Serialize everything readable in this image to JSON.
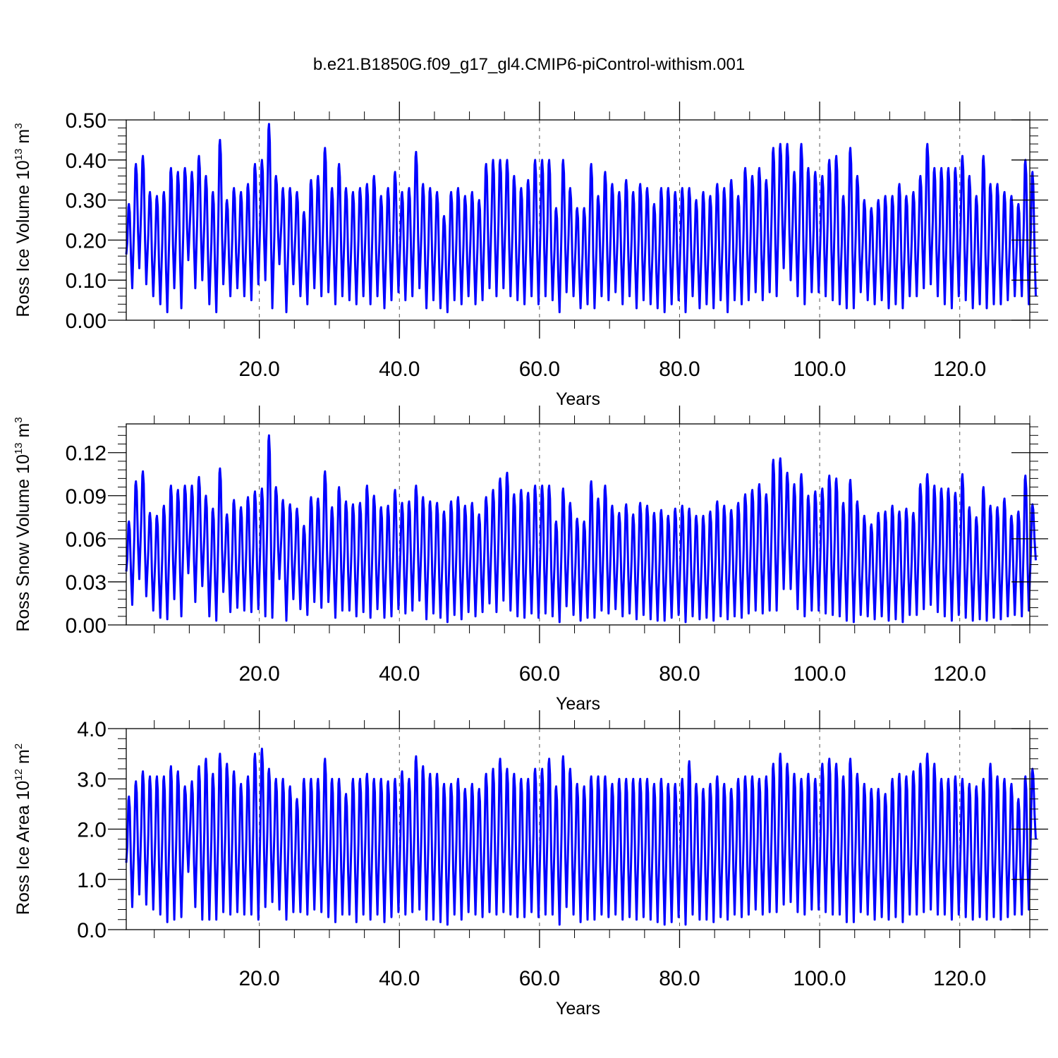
{
  "title": "b.e21.B1850G.f09_g17_gl4.CMIP6-piControl-withism.001",
  "line_color": "#0000ff",
  "chart_data": [
    {
      "type": "line",
      "ylabel": "Ross Ice Volume 10",
      "ylabel_exp": "13",
      "ylabel_unit": " m",
      "ylabel_unit_exp": "3",
      "xlabel": "Years",
      "xlim": [
        1,
        130
      ],
      "ylim": [
        0,
        0.5
      ],
      "yticks": [
        0,
        0.1,
        0.2,
        0.3,
        0.4,
        0.5
      ],
      "yticklabels": [
        "0.00",
        "0.10",
        "0.20",
        "0.30",
        "0.40",
        "0.50"
      ],
      "xticks": [
        20,
        40,
        60,
        80,
        100,
        120
      ],
      "xticklabels": [
        "20.0",
        "40.0",
        "60.0",
        "80.0",
        "100.0",
        "120.0"
      ],
      "grid": "vertical-dashed",
      "annual_max": [
        0.29,
        0.39,
        0.41,
        0.32,
        0.31,
        0.32,
        0.38,
        0.37,
        0.38,
        0.37,
        0.41,
        0.36,
        0.32,
        0.45,
        0.3,
        0.33,
        0.32,
        0.34,
        0.39,
        0.4,
        0.49,
        0.36,
        0.33,
        0.33,
        0.32,
        0.27,
        0.35,
        0.36,
        0.43,
        0.33,
        0.39,
        0.33,
        0.32,
        0.33,
        0.34,
        0.36,
        0.31,
        0.33,
        0.37,
        0.32,
        0.33,
        0.42,
        0.34,
        0.33,
        0.32,
        0.26,
        0.32,
        0.33,
        0.31,
        0.32,
        0.3,
        0.39,
        0.4,
        0.4,
        0.4,
        0.36,
        0.33,
        0.35,
        0.4,
        0.4,
        0.4,
        0.28,
        0.4,
        0.33,
        0.28,
        0.28,
        0.39,
        0.31,
        0.37,
        0.34,
        0.32,
        0.35,
        0.32,
        0.34,
        0.33,
        0.29,
        0.33,
        0.33,
        0.32,
        0.33,
        0.33,
        0.3,
        0.32,
        0.31,
        0.34,
        0.33,
        0.35,
        0.31,
        0.38,
        0.36,
        0.38,
        0.35,
        0.43,
        0.44,
        0.44,
        0.37,
        0.44,
        0.38,
        0.37,
        0.36,
        0.4,
        0.41,
        0.31,
        0.43,
        0.36,
        0.3,
        0.28,
        0.3,
        0.31,
        0.31,
        0.34,
        0.31,
        0.32,
        0.36,
        0.44,
        0.38,
        0.38,
        0.38,
        0.38,
        0.41,
        0.36,
        0.31,
        0.41,
        0.34,
        0.34,
        0.32,
        0.31,
        0.29,
        0.4,
        0.37
      ],
      "annual_min": [
        0.08,
        0.13,
        0.09,
        0.06,
        0.04,
        0.02,
        0.08,
        0.03,
        0.15,
        0.08,
        0.1,
        0.04,
        0.02,
        0.09,
        0.06,
        0.08,
        0.06,
        0.05,
        0.09,
        0.1,
        0.03,
        0.14,
        0.02,
        0.09,
        0.06,
        0.04,
        0.08,
        0.06,
        0.07,
        0.04,
        0.06,
        0.05,
        0.04,
        0.06,
        0.04,
        0.06,
        0.03,
        0.05,
        0.07,
        0.05,
        0.06,
        0.08,
        0.03,
        0.05,
        0.03,
        0.02,
        0.05,
        0.04,
        0.06,
        0.04,
        0.05,
        0.08,
        0.06,
        0.08,
        0.06,
        0.05,
        0.04,
        0.06,
        0.04,
        0.06,
        0.05,
        0.02,
        0.07,
        0.06,
        0.03,
        0.04,
        0.03,
        0.06,
        0.05,
        0.07,
        0.04,
        0.06,
        0.03,
        0.05,
        0.04,
        0.03,
        0.02,
        0.04,
        0.05,
        0.02,
        0.06,
        0.03,
        0.04,
        0.03,
        0.05,
        0.02,
        0.05,
        0.04,
        0.05,
        0.07,
        0.05,
        0.07,
        0.06,
        0.13,
        0.1,
        0.06,
        0.04,
        0.07,
        0.07,
        0.06,
        0.05,
        0.04,
        0.03,
        0.03,
        0.07,
        0.05,
        0.04,
        0.05,
        0.03,
        0.04,
        0.03,
        0.06,
        0.06,
        0.08,
        0.09,
        0.06,
        0.04,
        0.03,
        0.06,
        0.05,
        0.03,
        0.04,
        0.03,
        0.04,
        0.04,
        0.05,
        0.06,
        0.06,
        0.04,
        0.06
      ]
    },
    {
      "type": "line",
      "ylabel": "Ross Snow Volume 10",
      "ylabel_exp": "13",
      "ylabel_unit": " m",
      "ylabel_unit_exp": "3",
      "xlabel": "Years",
      "xlim": [
        1,
        130
      ],
      "ylim": [
        0,
        0.14
      ],
      "yticks": [
        0,
        0.03,
        0.06,
        0.09,
        0.12
      ],
      "yticklabels": [
        "0.00",
        "0.03",
        "0.06",
        "0.09",
        "0.12"
      ],
      "xticks": [
        20,
        40,
        60,
        80,
        100,
        120
      ],
      "xticklabels": [
        "20.0",
        "40.0",
        "60.0",
        "80.0",
        "100.0",
        "120.0"
      ],
      "grid": "vertical-dashed",
      "annual_max": [
        0.072,
        0.1,
        0.107,
        0.078,
        0.076,
        0.083,
        0.097,
        0.094,
        0.097,
        0.097,
        0.103,
        0.09,
        0.081,
        0.109,
        0.077,
        0.087,
        0.082,
        0.089,
        0.093,
        0.095,
        0.132,
        0.096,
        0.087,
        0.084,
        0.081,
        0.069,
        0.089,
        0.088,
        0.107,
        0.082,
        0.096,
        0.086,
        0.084,
        0.085,
        0.097,
        0.09,
        0.082,
        0.083,
        0.094,
        0.085,
        0.086,
        0.097,
        0.089,
        0.086,
        0.085,
        0.079,
        0.086,
        0.089,
        0.083,
        0.085,
        0.077,
        0.089,
        0.094,
        0.102,
        0.106,
        0.091,
        0.094,
        0.092,
        0.097,
        0.097,
        0.097,
        0.072,
        0.095,
        0.085,
        0.074,
        0.072,
        0.1,
        0.088,
        0.097,
        0.083,
        0.078,
        0.084,
        0.077,
        0.085,
        0.083,
        0.078,
        0.08,
        0.076,
        0.081,
        0.083,
        0.081,
        0.076,
        0.076,
        0.079,
        0.086,
        0.083,
        0.08,
        0.085,
        0.091,
        0.094,
        0.098,
        0.091,
        0.115,
        0.116,
        0.106,
        0.098,
        0.105,
        0.09,
        0.093,
        0.095,
        0.104,
        0.102,
        0.085,
        0.101,
        0.086,
        0.076,
        0.07,
        0.078,
        0.079,
        0.083,
        0.079,
        0.081,
        0.078,
        0.098,
        0.105,
        0.097,
        0.095,
        0.095,
        0.092,
        0.105,
        0.082,
        0.075,
        0.096,
        0.083,
        0.082,
        0.088,
        0.076,
        0.079,
        0.104,
        0.084
      ],
      "annual_min": [
        0.014,
        0.032,
        0.02,
        0.01,
        0.005,
        0.004,
        0.018,
        0.006,
        0.036,
        0.016,
        0.027,
        0.006,
        0.003,
        0.023,
        0.009,
        0.012,
        0.01,
        0.009,
        0.011,
        0.006,
        0.005,
        0.032,
        0.003,
        0.018,
        0.011,
        0.007,
        0.016,
        0.012,
        0.016,
        0.005,
        0.01,
        0.01,
        0.006,
        0.009,
        0.005,
        0.011,
        0.005,
        0.006,
        0.011,
        0.008,
        0.01,
        0.017,
        0.004,
        0.008,
        0.005,
        0.002,
        0.007,
        0.004,
        0.009,
        0.006,
        0.009,
        0.015,
        0.009,
        0.017,
        0.01,
        0.006,
        0.005,
        0.008,
        0.005,
        0.008,
        0.006,
        0.002,
        0.013,
        0.007,
        0.003,
        0.005,
        0.005,
        0.01,
        0.008,
        0.011,
        0.006,
        0.008,
        0.004,
        0.007,
        0.004,
        0.003,
        0.003,
        0.005,
        0.007,
        0.002,
        0.006,
        0.004,
        0.005,
        0.003,
        0.006,
        0.004,
        0.006,
        0.005,
        0.008,
        0.01,
        0.008,
        0.01,
        0.01,
        0.025,
        0.025,
        0.011,
        0.006,
        0.01,
        0.01,
        0.008,
        0.007,
        0.006,
        0.003,
        0.002,
        0.007,
        0.006,
        0.004,
        0.006,
        0.003,
        0.004,
        0.002,
        0.007,
        0.007,
        0.011,
        0.014,
        0.009,
        0.006,
        0.003,
        0.007,
        0.005,
        0.003,
        0.004,
        0.003,
        0.005,
        0.004,
        0.006,
        0.007,
        0.006,
        0.01,
        0.045
      ]
    },
    {
      "type": "line",
      "ylabel": "Ross Ice Area 10",
      "ylabel_exp": "12",
      "ylabel_unit": " m",
      "ylabel_unit_exp": "2",
      "xlabel": "Years",
      "xlim": [
        1,
        130
      ],
      "ylim": [
        0,
        4.0
      ],
      "yticks": [
        0,
        1,
        2,
        3,
        4
      ],
      "yticklabels": [
        "0.0",
        "1.0",
        "2.0",
        "3.0",
        "4.0"
      ],
      "xticks": [
        20,
        40,
        60,
        80,
        100,
        120
      ],
      "xticklabels": [
        "20.0",
        "40.0",
        "60.0",
        "80.0",
        "100.0",
        "120.0"
      ],
      "grid": "vertical-dashed",
      "annual_max": [
        2.65,
        2.95,
        3.15,
        3.05,
        3.05,
        3.05,
        3.25,
        3.15,
        2.85,
        2.95,
        3.25,
        3.4,
        3.1,
        3.5,
        3.3,
        3.15,
        2.9,
        3.05,
        3.5,
        3.6,
        3.2,
        3.0,
        3.0,
        2.85,
        2.6,
        3.0,
        3.0,
        3.0,
        3.4,
        3.0,
        3.0,
        2.7,
        3.0,
        3.0,
        3.1,
        3.0,
        3.0,
        2.95,
        3.0,
        3.15,
        3.0,
        3.45,
        3.25,
        3.1,
        3.1,
        2.9,
        2.9,
        3.0,
        2.8,
        2.9,
        2.8,
        3.1,
        3.2,
        3.4,
        3.2,
        3.1,
        3.0,
        3.0,
        3.2,
        3.2,
        3.4,
        2.85,
        3.45,
        3.2,
        2.9,
        2.85,
        3.05,
        3.05,
        3.05,
        2.9,
        3.0,
        3.0,
        3.0,
        3.0,
        3.0,
        2.9,
        3.0,
        2.9,
        2.9,
        3.0,
        3.35,
        2.9,
        2.8,
        2.9,
        3.05,
        2.9,
        2.8,
        3.0,
        3.05,
        3.05,
        3.0,
        3.05,
        3.3,
        3.5,
        3.3,
        3.1,
        3.0,
        3.1,
        3.0,
        3.3,
        3.4,
        3.3,
        3.05,
        3.4,
        3.1,
        2.9,
        2.8,
        2.8,
        2.7,
        3.0,
        3.1,
        3.05,
        3.15,
        3.3,
        3.5,
        3.3,
        3.0,
        3.0,
        3.05,
        3.0,
        2.9,
        2.85,
        3.0,
        3.3,
        3.05,
        3.0,
        2.9,
        2.6,
        3.05,
        3.2
      ],
      "annual_min": [
        0.45,
        0.7,
        0.5,
        0.4,
        0.3,
        0.15,
        0.2,
        0.25,
        1.15,
        0.45,
        0.2,
        0.2,
        0.2,
        0.35,
        0.3,
        0.35,
        0.3,
        0.3,
        0.2,
        0.45,
        0.55,
        0.4,
        0.2,
        0.35,
        0.35,
        0.3,
        0.4,
        0.35,
        0.25,
        0.15,
        0.3,
        0.3,
        0.15,
        0.3,
        0.2,
        0.3,
        0.15,
        0.25,
        0.35,
        0.3,
        0.35,
        0.4,
        0.2,
        0.2,
        0.15,
        0.1,
        0.3,
        0.2,
        0.35,
        0.3,
        0.25,
        0.35,
        0.3,
        0.35,
        0.3,
        0.25,
        0.25,
        0.35,
        0.25,
        0.3,
        0.3,
        0.1,
        0.45,
        0.3,
        0.15,
        0.2,
        0.2,
        0.3,
        0.25,
        0.3,
        0.2,
        0.25,
        0.2,
        0.25,
        0.2,
        0.15,
        0.1,
        0.15,
        0.25,
        0.1,
        0.3,
        0.2,
        0.2,
        0.15,
        0.25,
        0.2,
        0.3,
        0.25,
        0.3,
        0.4,
        0.3,
        0.35,
        0.35,
        0.5,
        0.55,
        0.35,
        0.3,
        0.4,
        0.4,
        0.35,
        0.3,
        0.3,
        0.15,
        0.15,
        0.35,
        0.3,
        0.2,
        0.25,
        0.2,
        0.25,
        0.15,
        0.3,
        0.3,
        0.35,
        0.4,
        0.3,
        0.3,
        0.2,
        0.3,
        0.25,
        0.2,
        0.25,
        0.2,
        0.25,
        0.2,
        0.25,
        0.3,
        0.3,
        0.4,
        1.8
      ]
    }
  ]
}
